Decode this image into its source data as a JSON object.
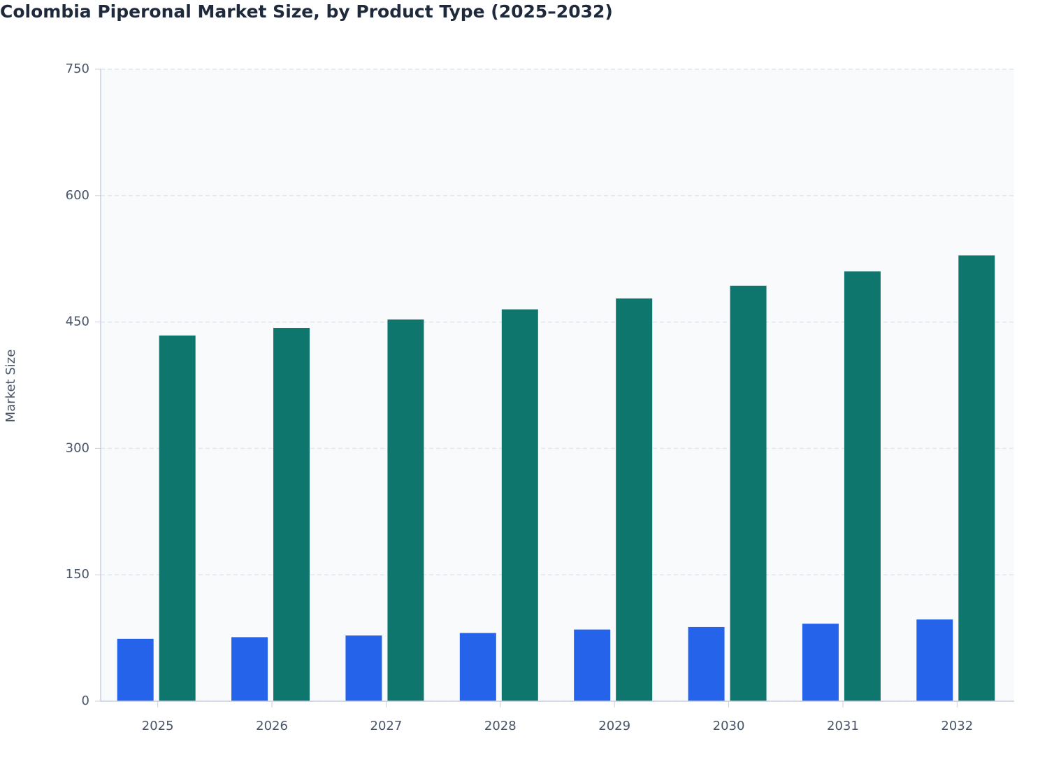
{
  "chart_data": {
    "type": "bar",
    "title": "Colombia Piperonal Market Size, by Product Type (2025–2032)",
    "y_label": "Market Size",
    "categories": [
      "2025",
      "2026",
      "2027",
      "2028",
      "2029",
      "2030",
      "2031",
      "2032"
    ],
    "series": [
      {
        "color": "#2563eb",
        "values": [
          74,
          76,
          78,
          81,
          85,
          88,
          92,
          97
        ]
      },
      {
        "color": "#0f766e",
        "values": [
          434,
          443,
          453,
          465,
          478,
          493,
          510,
          529
        ]
      }
    ],
    "ylim": [
      0,
      750
    ],
    "yticks": [
      0,
      150,
      300,
      450,
      600,
      750
    ],
    "grid": true
  }
}
